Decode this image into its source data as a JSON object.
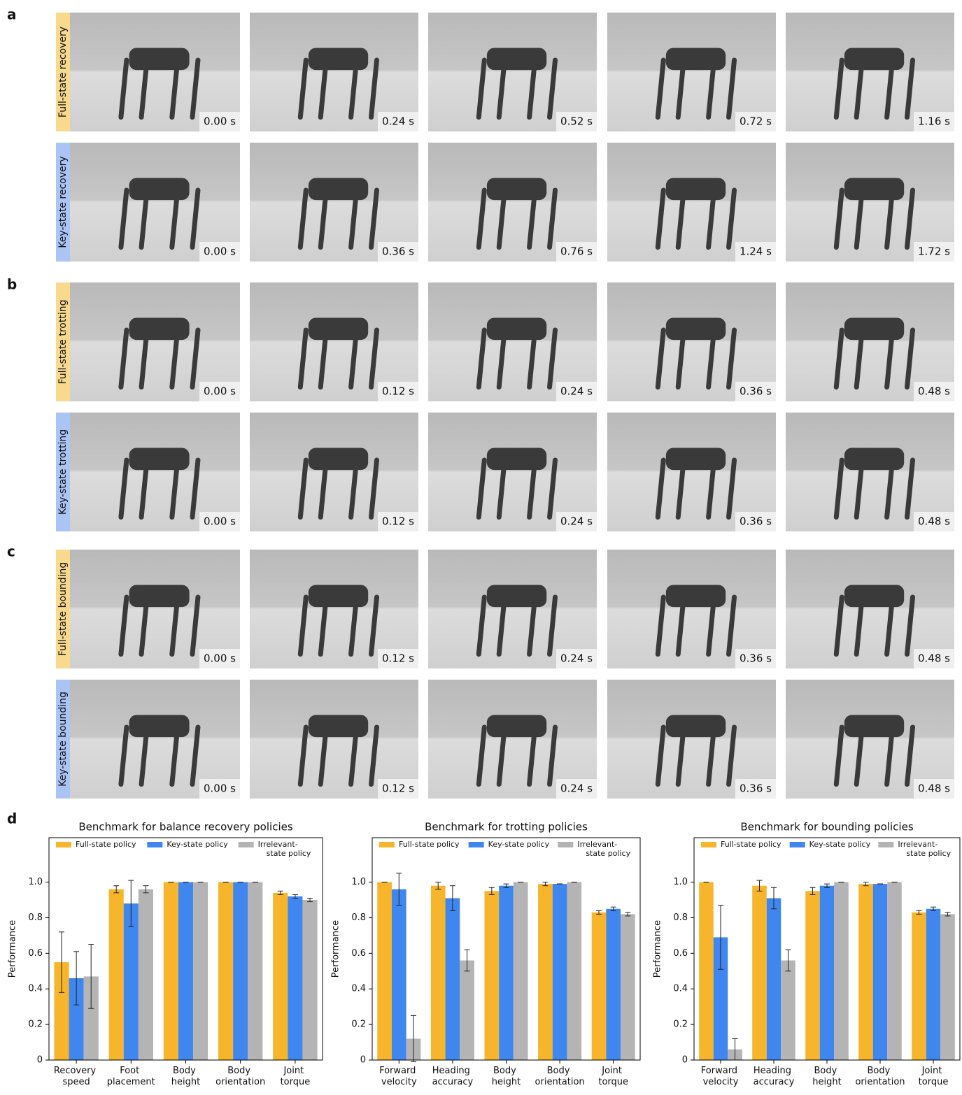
{
  "panels": [
    {
      "label": "a",
      "rows": [
        {
          "name": "Full-state recovery",
          "color": "#f9d98c",
          "times": [
            "0.00 s",
            "0.24 s",
            "0.52 s",
            "0.72 s",
            "1.16 s"
          ]
        },
        {
          "name": "Key-state recovery",
          "color": "#a9c4f5",
          "times": [
            "0.00 s",
            "0.36 s",
            "0.76 s",
            "1.24 s",
            "1.72 s"
          ]
        }
      ]
    },
    {
      "label": "b",
      "rows": [
        {
          "name": "Full-state trotting",
          "color": "#f9d98c",
          "times": [
            "0.00 s",
            "0.12 s",
            "0.24 s",
            "0.36 s",
            "0.48 s"
          ]
        },
        {
          "name": "Key-state trotting",
          "color": "#a9c4f5",
          "times": [
            "0.00 s",
            "0.12 s",
            "0.24 s",
            "0.36 s",
            "0.48 s"
          ]
        }
      ]
    },
    {
      "label": "c",
      "rows": [
        {
          "name": "Full-state bounding",
          "color": "#f9d98c",
          "times": [
            "0.00 s",
            "0.12 s",
            "0.24 s",
            "0.36 s",
            "0.48 s"
          ]
        },
        {
          "name": "Key-state bounding",
          "color": "#a9c4f5",
          "times": [
            "0.00 s",
            "0.12 s",
            "0.24 s",
            "0.36 s",
            "0.48 s"
          ]
        }
      ]
    }
  ],
  "panel_d_label": "d",
  "chart_data": [
    {
      "type": "bar",
      "title": "Benchmark for balance recovery policies",
      "y_label": "Performance",
      "categories": [
        "Recovery speed",
        "Foot placement",
        "Body height",
        "Body orientation",
        "Joint torque"
      ],
      "series": [
        {
          "name": "Full-state policy",
          "color": "#f6b52b",
          "values": [
            0.55,
            0.96,
            1.0,
            1.0,
            0.94
          ],
          "errors": [
            0.17,
            0.02,
            0.0,
            0.0,
            0.01
          ]
        },
        {
          "name": "Key-state policy",
          "color": "#3f86ef",
          "values": [
            0.46,
            0.88,
            1.0,
            1.0,
            0.92
          ],
          "errors": [
            0.15,
            0.13,
            0.0,
            0.0,
            0.01
          ]
        },
        {
          "name": "Irrelevant-state policy",
          "color": "#b4b4b4",
          "values": [
            0.47,
            0.96,
            1.0,
            1.0,
            0.9
          ],
          "errors": [
            0.18,
            0.02,
            0.0,
            0.0,
            0.01
          ]
        }
      ],
      "ylim": [
        0,
        1.25
      ],
      "yticks": [
        0,
        0.2,
        0.4,
        0.6,
        0.8,
        {
          "value": 1,
          "label": "1.0"
        }
      ],
      "legend": "top"
    },
    {
      "type": "bar",
      "title": "Benchmark for trotting policies",
      "y_label": "Performance",
      "categories": [
        "Forward velocity",
        "Heading accuracy",
        "Body height",
        "Body orientation",
        "Joint torque"
      ],
      "series": [
        {
          "name": "Full-state policy",
          "color": "#f6b52b",
          "values": [
            1.0,
            0.98,
            0.95,
            0.99,
            0.83
          ],
          "errors": [
            0.0,
            0.02,
            0.02,
            0.01,
            0.01
          ]
        },
        {
          "name": "Key-state policy",
          "color": "#3f86ef",
          "values": [
            0.96,
            0.91,
            0.98,
            0.99,
            0.85
          ],
          "errors": [
            0.09,
            0.07,
            0.01,
            0.0,
            0.01
          ]
        },
        {
          "name": "Irrelevant-state policy",
          "color": "#b4b4b4",
          "values": [
            0.12,
            0.56,
            1.0,
            1.0,
            0.82
          ],
          "errors": [
            0.13,
            0.06,
            0.0,
            0.0,
            0.01
          ]
        }
      ],
      "ylim": [
        0,
        1.25
      ],
      "yticks": [
        0,
        0.2,
        0.4,
        0.6,
        0.8,
        {
          "value": 1,
          "label": "1.0"
        }
      ],
      "legend": "top"
    },
    {
      "type": "bar",
      "title": "Benchmark for bounding policies",
      "y_label": "Performance",
      "categories": [
        "Forward velocity",
        "Heading accuracy",
        "Body height",
        "Body orientation",
        "Joint torque"
      ],
      "series": [
        {
          "name": "Full-state policy",
          "color": "#f6b52b",
          "values": [
            1.0,
            0.98,
            0.95,
            0.99,
            0.83
          ],
          "errors": [
            0.0,
            0.03,
            0.02,
            0.01,
            0.01
          ]
        },
        {
          "name": "Key-state policy",
          "color": "#3f86ef",
          "values": [
            0.69,
            0.91,
            0.98,
            0.99,
            0.85
          ],
          "errors": [
            0.18,
            0.06,
            0.01,
            0.0,
            0.01
          ]
        },
        {
          "name": "Irrelevant-state policy",
          "color": "#b4b4b4",
          "values": [
            0.06,
            0.56,
            1.0,
            1.0,
            0.82
          ],
          "errors": [
            0.06,
            0.06,
            0.0,
            0.0,
            0.01
          ]
        }
      ],
      "ylim": [
        0,
        1.25
      ],
      "yticks": [
        0,
        0.2,
        0.4,
        0.6,
        0.8,
        {
          "value": 1,
          "label": "1.0"
        }
      ],
      "legend": "top"
    }
  ]
}
